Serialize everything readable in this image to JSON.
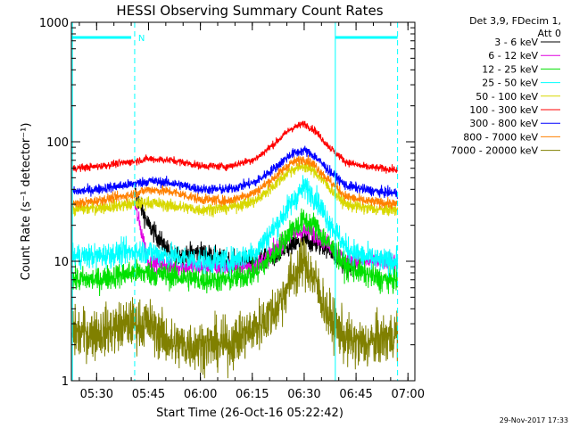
{
  "chart_data": {
    "type": "line",
    "title": "HESSI Observing Summary Count Rates",
    "xlabel": "Start Time (26-Oct-16 05:22:42)",
    "ylabel": "Count Rate (s⁻¹ detector⁻¹)",
    "y_scale": "log",
    "ylim": [
      1,
      1000
    ],
    "y_ticks": [
      {
        "value": 1,
        "label": "1"
      },
      {
        "value": 10,
        "label": "10"
      },
      {
        "value": 100,
        "label": "100"
      },
      {
        "value": 1000,
        "label": "1000"
      }
    ],
    "xlim": [
      "05:22:42",
      "07:02:00"
    ],
    "x_ticks": [
      "05:30",
      "05:45",
      "06:00",
      "06:15",
      "06:30",
      "06:45",
      "07:00"
    ],
    "grid": false,
    "legend_position": "right",
    "legend_header": [
      "Det 3,9, FDecim 1,",
      "Att 0"
    ],
    "footer_date": "29-Nov-2017 17:33",
    "flag_label": "N",
    "flag_color": "#00ffff",
    "markers": {
      "vertical_solid": [
        "05:23:00",
        "06:39:00"
      ],
      "vertical_dashed": [
        "05:41:00",
        "06:57:00"
      ],
      "bar_intervals": [
        [
          "05:22:42",
          "05:40:00"
        ],
        [
          "06:39:00",
          "06:57:00"
        ]
      ],
      "flag_text_time": "05:42:00"
    },
    "sample_times": [
      "05:23",
      "05:30",
      "05:40",
      "05:45",
      "05:52",
      "06:00",
      "06:08",
      "06:16",
      "06:22",
      "06:26",
      "06:30",
      "06:33",
      "06:37",
      "06:42",
      "06:47",
      "06:52",
      "06:57"
    ],
    "series": [
      {
        "name": "3 - 6 keV",
        "color": "#000000",
        "t_start": "05:41",
        "t_end": "06:45",
        "values": [
          null,
          null,
          45,
          20,
          11,
          12,
          10,
          10,
          11,
          13,
          15,
          14,
          13,
          9,
          9,
          null,
          null
        ],
        "noise": 0.08
      },
      {
        "name": "6 - 12 keV",
        "color": "#e000e0",
        "t_start": "05:41",
        "t_end": "06:57",
        "values": [
          null,
          null,
          40,
          10,
          9,
          9,
          9,
          9,
          13,
          16,
          18,
          17,
          14,
          10,
          10,
          10,
          10
        ],
        "noise": 0.07
      },
      {
        "name": "12 - 25 keV",
        "color": "#00e000",
        "t_start": "05:23",
        "t_end": "06:57",
        "values": [
          7,
          7,
          8,
          8,
          7.5,
          7,
          7,
          8,
          12,
          18,
          22,
          20,
          14,
          9,
          8,
          7,
          7
        ],
        "noise": 0.1
      },
      {
        "name": "25 - 50 keV",
        "color": "#00ffff",
        "t_start": "05:23",
        "t_end": "06:57",
        "values": [
          11,
          11,
          12,
          12,
          11,
          10,
          10,
          12,
          20,
          30,
          42,
          35,
          22,
          13,
          11,
          10,
          10
        ],
        "noise": 0.1
      },
      {
        "name": "50 - 100 keV",
        "color": "#d8d800",
        "t_start": "05:23",
        "t_end": "06:57",
        "values": [
          27,
          28,
          30,
          31,
          29,
          27,
          28,
          32,
          45,
          58,
          63,
          57,
          42,
          30,
          28,
          27,
          27
        ],
        "noise": 0.05
      },
      {
        "name": "100 - 300 keV",
        "color": "#ff0000",
        "t_start": "05:23",
        "t_end": "06:57",
        "values": [
          60,
          62,
          68,
          72,
          70,
          63,
          62,
          72,
          100,
          128,
          142,
          125,
          92,
          68,
          62,
          60,
          58
        ],
        "noise": 0.03
      },
      {
        "name": "300 - 800 keV",
        "color": "#0000ff",
        "t_start": "05:23",
        "t_end": "06:57",
        "values": [
          38,
          40,
          44,
          47,
          45,
          40,
          40,
          46,
          62,
          78,
          85,
          76,
          58,
          43,
          40,
          38,
          37
        ],
        "noise": 0.04
      },
      {
        "name": "800 - 7000 keV",
        "color": "#ff8000",
        "t_start": "05:23",
        "t_end": "06:57",
        "values": [
          30,
          32,
          36,
          40,
          38,
          33,
          32,
          38,
          52,
          66,
          72,
          64,
          48,
          35,
          32,
          31,
          30
        ],
        "noise": 0.04
      },
      {
        "name": "7000 - 20000 keV",
        "color": "#808000",
        "t_start": "05:23",
        "t_end": "06:57",
        "values": [
          2.5,
          2.5,
          3,
          3,
          2,
          2,
          2,
          2.8,
          4,
          7,
          10,
          7,
          3.5,
          2.2,
          2,
          2.2,
          2.5
        ],
        "noise": 0.2
      }
    ]
  }
}
